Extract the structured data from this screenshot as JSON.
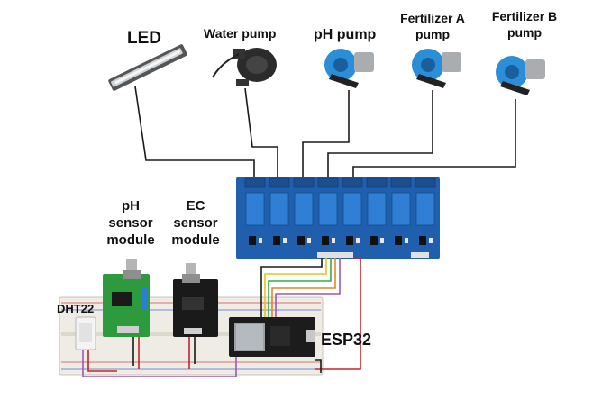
{
  "labels": {
    "led": "LED",
    "water_pump": "Water pump",
    "ph_pump": "pH pump",
    "fert_a_line1": "Fertilizer A",
    "fert_a_line2": "pump",
    "fert_b_line1": "Fertilizer B",
    "fert_b_line2": "pump",
    "ph_module_line1": "pH",
    "ph_module_line2": "sensor",
    "ph_module_line3": "module",
    "ec_module_line1": "EC",
    "ec_module_line2": "sensor",
    "ec_module_line3": "module",
    "dht": "DHT22",
    "esp": "ESP32"
  },
  "colors": {
    "relay_board": "#1f5fae",
    "relay_block": "#2f7fd6",
    "pump_body": "#2a8fd8",
    "ph_board": "#2e9a3e",
    "ec_board": "#1a1a1a",
    "esp_board": "#1c1c1c",
    "wire_main": "#1a1a1a",
    "wire_red": "#c0262a",
    "wire_purple": "#9b59b6",
    "wire_yellow": "#e8c21a",
    "wire_green": "#3aa84a",
    "wire_orange": "#e3862a"
  },
  "relay_channels": 8
}
